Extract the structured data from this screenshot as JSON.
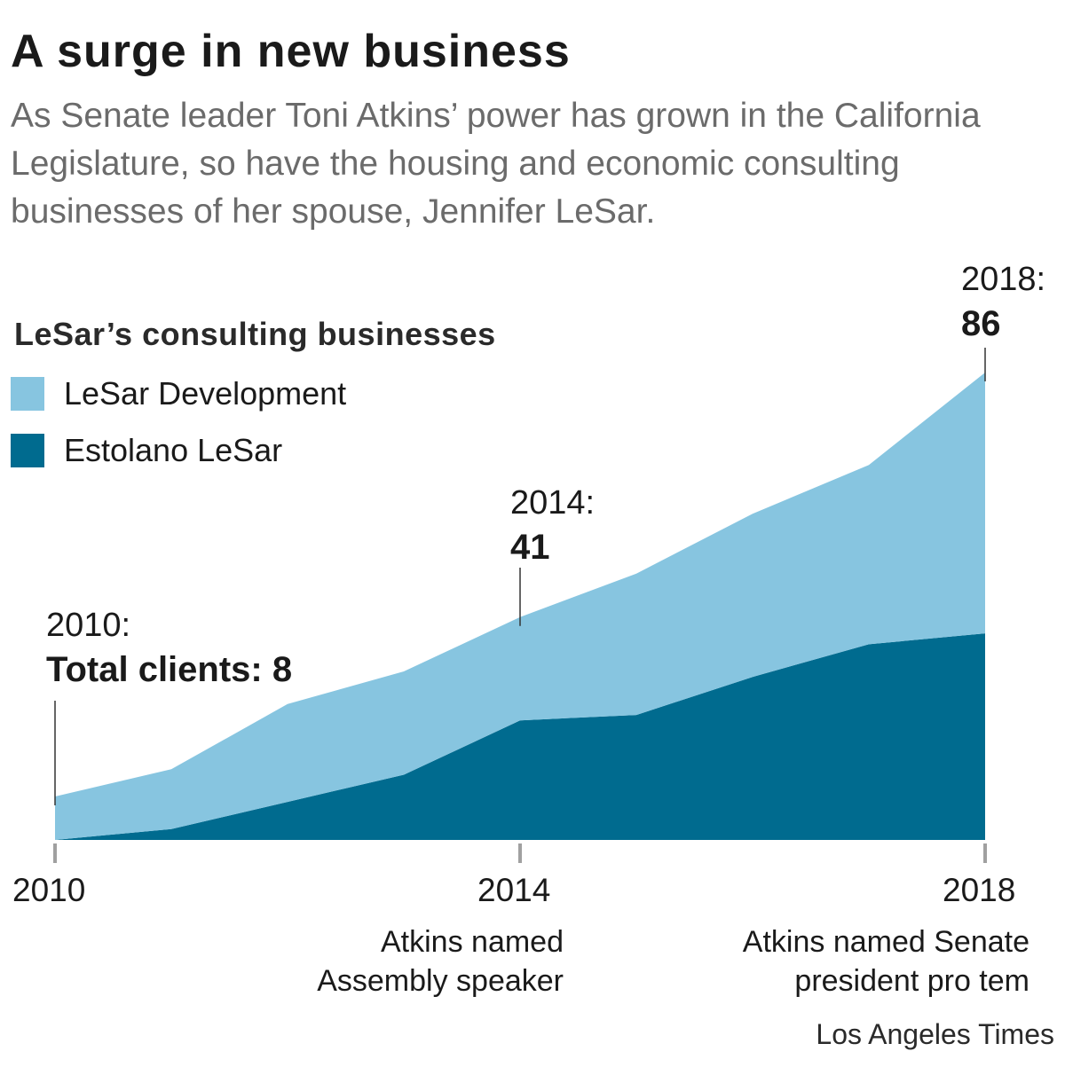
{
  "header": {
    "title": "A surge in new business",
    "subtitle": "As Senate leader Toni Atkins’ power has grown in the California Legislature, so have the housing and economic consulting businesses of her spouse, Jennifer LeSar."
  },
  "legend": {
    "title": "LeSar’s consulting businesses",
    "items": [
      {
        "label": "LeSar Development",
        "color": "#87c5e0"
      },
      {
        "label": "Estolano LeSar",
        "color": "#006b8f"
      }
    ]
  },
  "annotations": {
    "a2010": {
      "line1": "2010:",
      "line2": "Total clients: 8"
    },
    "a2014": {
      "line1": "2014:",
      "line2": "41"
    },
    "a2018": {
      "line1": "2018:",
      "line2": "86"
    }
  },
  "notes": {
    "n2014": "Atkins named Assembly speaker",
    "n2018": "Atkins named Senate president pro tem"
  },
  "credit": "Los Angeles Times",
  "chart_data": {
    "type": "area",
    "stacked": true,
    "x": [
      2010,
      2011,
      2012,
      2013,
      2014,
      2015,
      2016,
      2017,
      2018
    ],
    "xticks": [
      2010,
      2014,
      2018
    ],
    "xtick_labels": [
      "2010",
      "2014",
      "2018"
    ],
    "series": [
      {
        "name": "Estolano LeSar",
        "color": "#006b8f",
        "values": [
          0,
          2,
          7,
          12,
          22,
          23,
          30,
          36,
          38
        ]
      },
      {
        "name": "LeSar Development",
        "color": "#87c5e0",
        "values": [
          8,
          11,
          18,
          19,
          19,
          26,
          30,
          33,
          48
        ]
      }
    ],
    "totals": [
      8,
      13,
      25,
      31,
      41,
      49,
      60,
      69,
      86
    ],
    "ylim": [
      0,
      86
    ],
    "grid": false,
    "legend_position": "top-left"
  }
}
